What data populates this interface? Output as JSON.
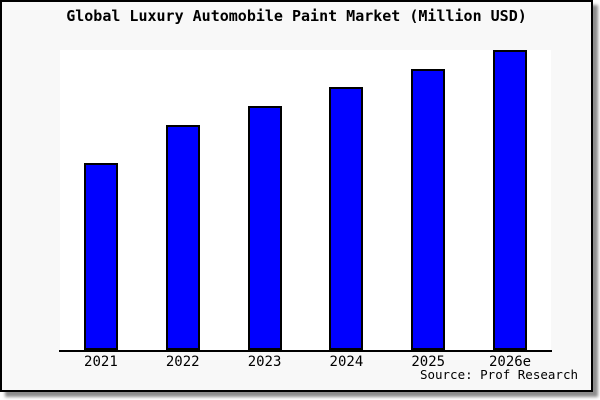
{
  "window": {
    "background_color": "#f8f8f8",
    "plot_background_color": "#ffffff",
    "frame_border_color": "#000000"
  },
  "header": {
    "title": "Global Luxury Automobile Paint Market (Million USD)"
  },
  "footer": {
    "source_note": "Source: Prof Research"
  },
  "chart_data": {
    "type": "bar",
    "title": "Global Luxury Automobile Paint Market (Million USD)",
    "categories": [
      "2021",
      "2022",
      "2023",
      "2024",
      "2025",
      "2026e"
    ],
    "values": [
      62.5,
      75.0,
      81.3,
      87.7,
      93.7,
      100
    ],
    "xlabel": "",
    "ylabel": "",
    "ylim": [
      0,
      100
    ],
    "grid": false,
    "legend": "none",
    "y_axis_tick_labels_shown": false,
    "bar_color": "#0000ff",
    "bar_border_color": "#000000",
    "source": "Source: Prof Research"
  }
}
